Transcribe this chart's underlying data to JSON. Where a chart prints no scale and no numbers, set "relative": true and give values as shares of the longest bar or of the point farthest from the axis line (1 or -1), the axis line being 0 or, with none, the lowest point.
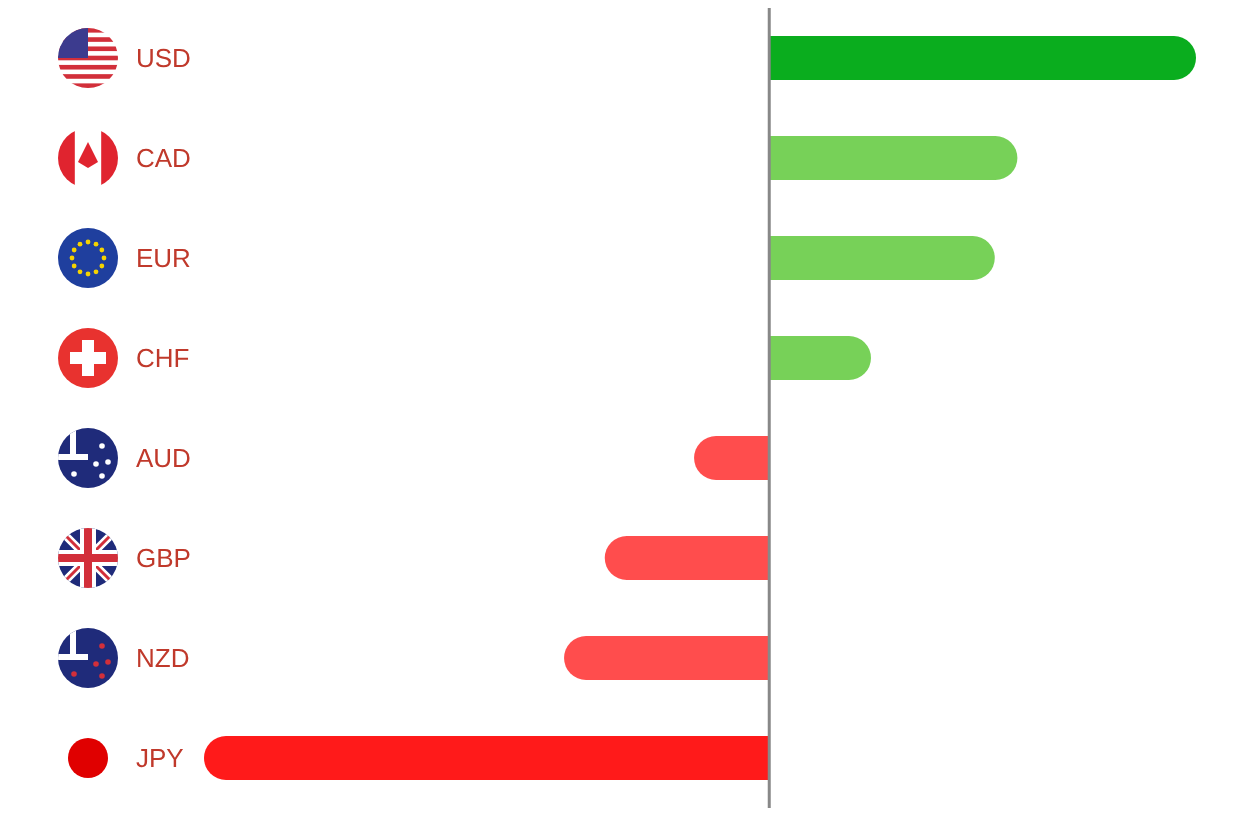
{
  "chart_data": {
    "type": "bar",
    "orientation": "horizontal",
    "relative": true,
    "categories": [
      "USD",
      "CAD",
      "EUR",
      "CHF",
      "AUD",
      "GBP",
      "NZD",
      "JPY"
    ],
    "values": [
      0.755,
      0.439,
      0.399,
      0.18,
      -0.133,
      -0.291,
      -0.363,
      -1
    ],
    "colors": [
      "#0aad1e",
      "#77d158",
      "#77d158",
      "#77d158",
      "#ff4d4d",
      "#ff4d4d",
      "#ff4d4d",
      "#ff1a1a"
    ],
    "ref_lines": [
      {
        "axis": "x",
        "value": 0,
        "color": "#888888"
      }
    ]
  }
}
